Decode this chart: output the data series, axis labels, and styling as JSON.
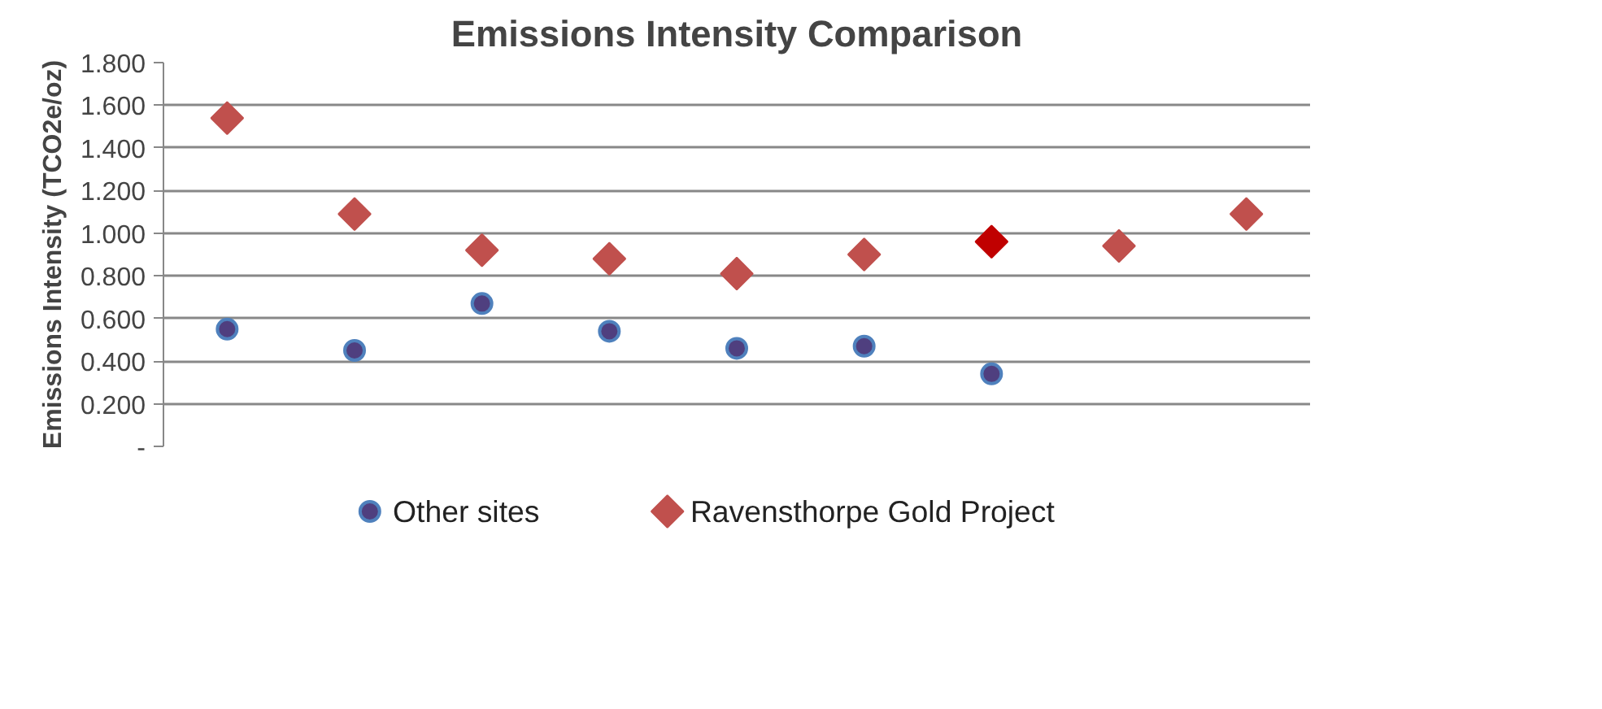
{
  "chart_data": {
    "type": "scatter",
    "title": "Emissions Intensity Comparison",
    "ylabel": "Emissions Intensity (TCO2e/oz)",
    "categories": [
      null,
      null,
      null,
      null,
      null,
      null,
      null,
      null,
      null
    ],
    "series": [
      {
        "name": "Other sites",
        "color": "#4f3f7f",
        "marker": "circle",
        "values": [
          0.55,
          0.45,
          0.67,
          0.54,
          0.46,
          0.47,
          0.34,
          null,
          null
        ]
      },
      {
        "name": "Ravensthorpe Gold Project",
        "color": "#c0504d",
        "marker": "diamond",
        "colors": [
          "#c0504d",
          "#c0504d",
          "#c0504d",
          "#c0504d",
          "#c0504d",
          "#c0504d",
          "#c00000",
          "#c0504d",
          "#c0504d"
        ],
        "values": [
          1.54,
          1.09,
          0.92,
          0.88,
          0.81,
          0.9,
          0.96,
          0.94,
          1.09
        ]
      }
    ],
    "ylim": [
      0,
      1.8
    ],
    "yticks": [
      {
        "value": 0,
        "label": "-"
      },
      {
        "value": 0.2,
        "label": "0.200"
      },
      {
        "value": 0.4,
        "label": "0.400"
      },
      {
        "value": 0.6,
        "label": "0.600"
      },
      {
        "value": 0.8,
        "label": "0.800"
      },
      {
        "value": 1.0,
        "label": "1.000"
      },
      {
        "value": 1.2,
        "label": "1.200"
      },
      {
        "value": 1.4,
        "label": "1.400"
      },
      {
        "value": 1.6,
        "label": "1.600"
      },
      {
        "value": 1.8,
        "label": "1.800"
      }
    ],
    "grid": "y",
    "legend": "bottom"
  }
}
